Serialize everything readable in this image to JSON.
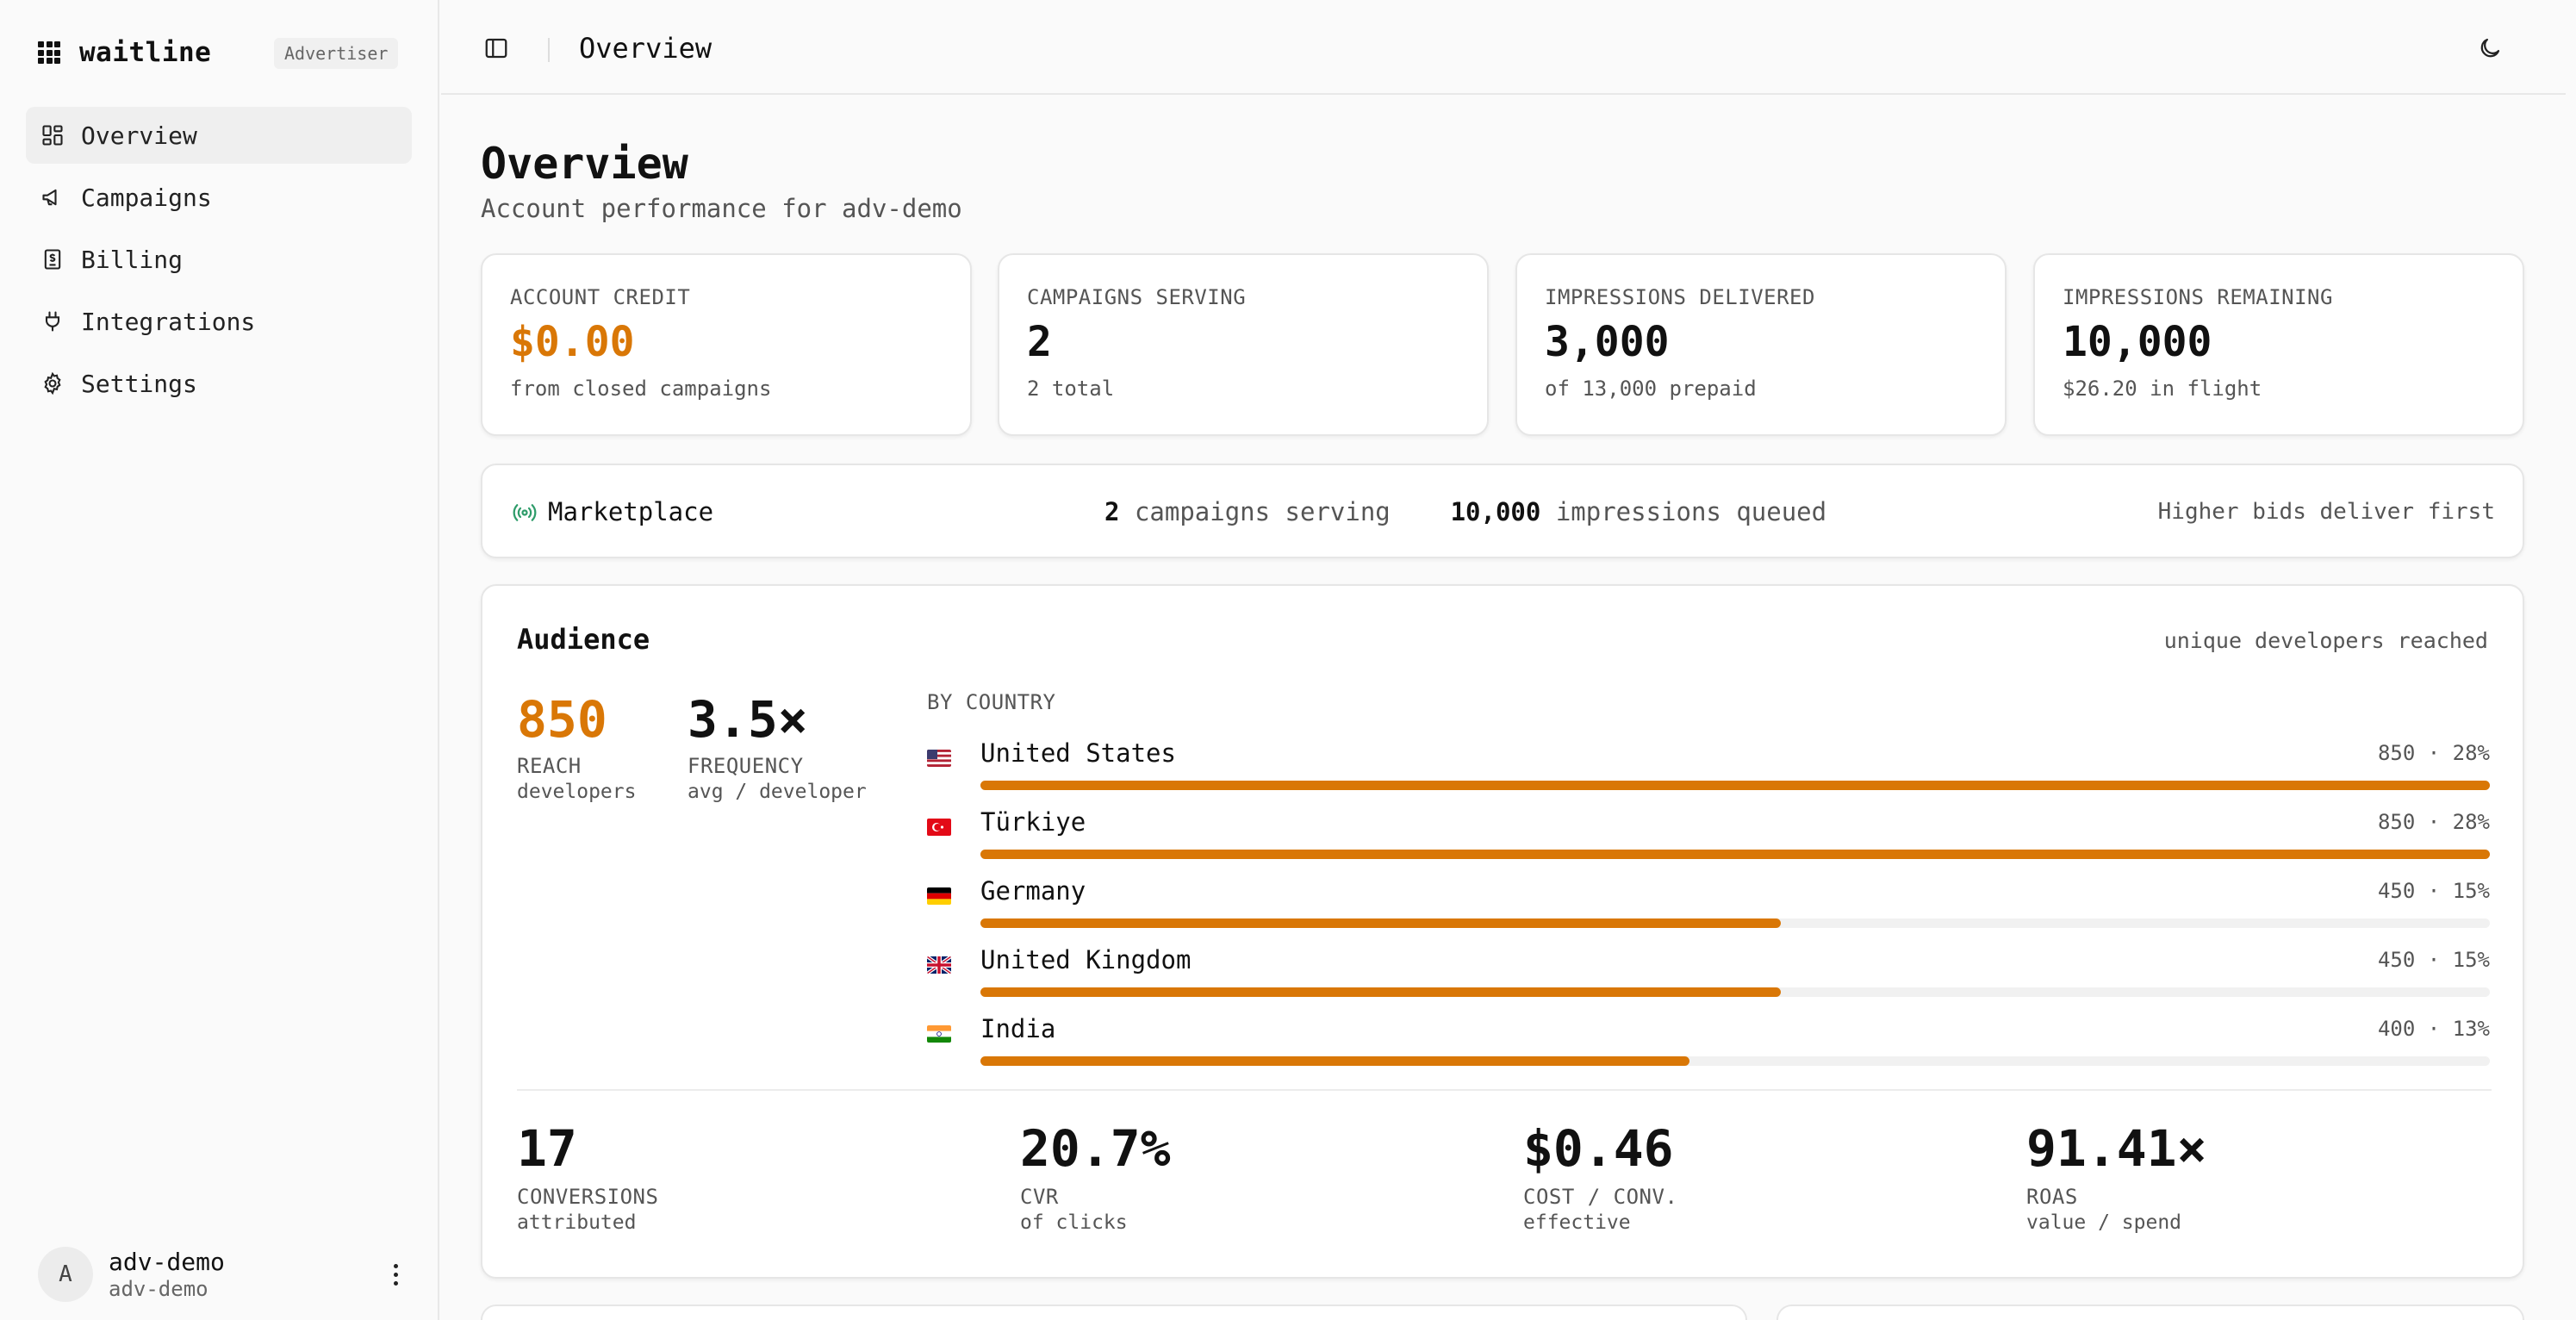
{
  "brand": {
    "name": "waitline",
    "role": "Advertiser"
  },
  "nav": {
    "items": [
      {
        "label": "Overview",
        "icon": "dashboard-icon",
        "active": true
      },
      {
        "label": "Campaigns",
        "icon": "megaphone-icon"
      },
      {
        "label": "Billing",
        "icon": "receipt-icon"
      },
      {
        "label": "Integrations",
        "icon": "plug-icon"
      },
      {
        "label": "Settings",
        "icon": "gear-icon"
      }
    ]
  },
  "user": {
    "initial": "A",
    "name": "adv-demo",
    "account": "adv-demo"
  },
  "header": {
    "title": "Overview"
  },
  "page": {
    "title": "Overview",
    "subtitle": "Account performance for adv-demo"
  },
  "stats": [
    {
      "label": "ACCOUNT CREDIT",
      "value": "$0.00",
      "sub": "from closed campaigns",
      "accent": true
    },
    {
      "label": "CAMPAIGNS SERVING",
      "value": "2",
      "sub": "2 total"
    },
    {
      "label": "IMPRESSIONS DELIVERED",
      "value": "3,000",
      "sub": "of 13,000 prepaid"
    },
    {
      "label": "IMPRESSIONS REMAINING",
      "value": "10,000",
      "sub": "$26.20 in flight"
    }
  ],
  "marketplace": {
    "title": "Marketplace",
    "campaigns_count": "2",
    "campaigns_text": "campaigns serving",
    "impressions_count": "10,000",
    "impressions_text": "impressions queued",
    "note": "Higher bids deliver first"
  },
  "audience": {
    "title": "Audience",
    "note": "unique developers reached",
    "reach": {
      "value": "850",
      "label": "REACH",
      "sub": "developers"
    },
    "frequency": {
      "value": "3.5×",
      "label": "FREQUENCY",
      "sub": "avg / developer"
    },
    "by_country_label": "BY COUNTRY",
    "countries": [
      {
        "name": "United States",
        "stat": "850 · 28%",
        "share": 1.0,
        "flag": "us"
      },
      {
        "name": "Türkiye",
        "stat": "850 · 28%",
        "share": 1.0,
        "flag": "tr"
      },
      {
        "name": "Germany",
        "stat": "450 · 15%",
        "share": 0.53,
        "flag": "de"
      },
      {
        "name": "United Kingdom",
        "stat": "450 · 15%",
        "share": 0.53,
        "flag": "gb"
      },
      {
        "name": "India",
        "stat": "400 · 13%",
        "share": 0.47,
        "flag": "in"
      }
    ],
    "kpis": [
      {
        "value": "17",
        "label": "CONVERSIONS",
        "sub": "attributed"
      },
      {
        "value": "20.7%",
        "label": "CVR",
        "sub": "of clicks"
      },
      {
        "value": "$0.46",
        "label": "COST / CONV.",
        "sub": "effective"
      },
      {
        "value": "91.41×",
        "label": "ROAS",
        "sub": "value / spend"
      }
    ]
  },
  "colors": {
    "accent": "#d97706",
    "marketplace_icon": "#2e9c6a"
  }
}
